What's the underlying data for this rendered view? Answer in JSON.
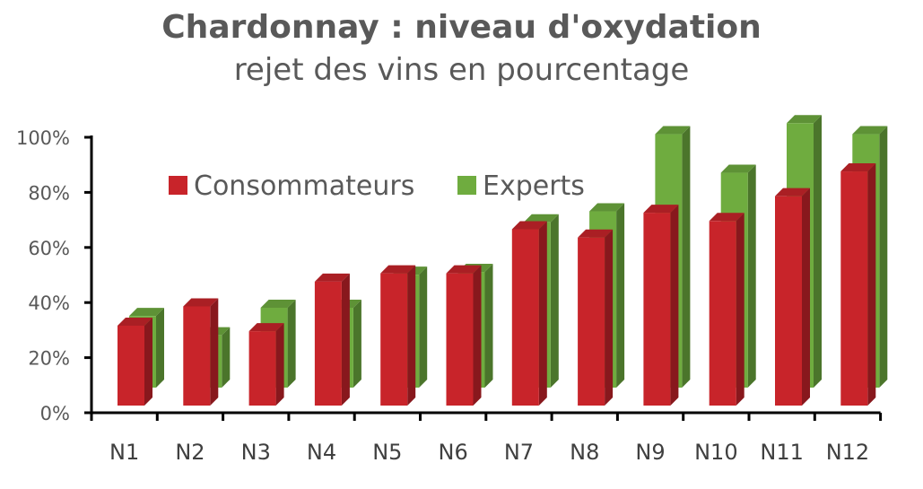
{
  "chart_data": {
    "type": "bar",
    "title": "Chardonnay : niveau d'oxydation",
    "subtitle": "rejet des vins en pourcentage",
    "categories": [
      "N1",
      "N2",
      "N3",
      "N4",
      "N5",
      "N6",
      "N7",
      "N8",
      "N9",
      "N10",
      "N11",
      "N12"
    ],
    "series": [
      {
        "name": "Consommateurs",
        "color": "#c8242a",
        "values": [
          29,
          36,
          27,
          45,
          48,
          48,
          64,
          61,
          70,
          67,
          76,
          85
        ]
      },
      {
        "name": "Experts",
        "color": "#6fac3f",
        "values": [
          26,
          19,
          29,
          29,
          41,
          42,
          60,
          64,
          92,
          78,
          96,
          92
        ]
      }
    ],
    "yticks": [
      "0%",
      "20%",
      "40%",
      "60%",
      "80%",
      "100%"
    ],
    "ylim": [
      0,
      100
    ],
    "grid": false,
    "legend_position": "top-left"
  }
}
